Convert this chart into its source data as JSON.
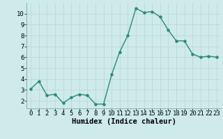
{
  "x": [
    0,
    1,
    2,
    3,
    4,
    5,
    6,
    7,
    8,
    9,
    10,
    11,
    12,
    13,
    14,
    15,
    16,
    17,
    18,
    19,
    20,
    21,
    22,
    23
  ],
  "y": [
    3.1,
    3.8,
    2.5,
    2.6,
    1.8,
    2.3,
    2.6,
    2.5,
    1.7,
    1.7,
    4.4,
    6.5,
    8.0,
    10.5,
    10.1,
    10.2,
    9.7,
    8.5,
    7.5,
    7.5,
    6.3,
    6.0,
    6.1,
    6.0
  ],
  "line_color": "#2a8b6f",
  "marker_color": "#2a8b6f",
  "bg_color": "#ceeaea",
  "grid_color": "#b8d4d4",
  "xlabel": "Humidex (Indice chaleur)",
  "xlim": [
    -0.5,
    23.5
  ],
  "ylim": [
    1.3,
    11.0
  ],
  "yticks": [
    2,
    3,
    4,
    5,
    6,
    7,
    8,
    9,
    10
  ],
  "xticks": [
    0,
    1,
    2,
    3,
    4,
    5,
    6,
    7,
    8,
    9,
    10,
    11,
    12,
    13,
    14,
    15,
    16,
    17,
    18,
    19,
    20,
    21,
    22,
    23
  ],
  "xlabel_fontsize": 7.5,
  "tick_fontsize": 6.5,
  "linewidth": 1.0,
  "markersize": 2.2
}
